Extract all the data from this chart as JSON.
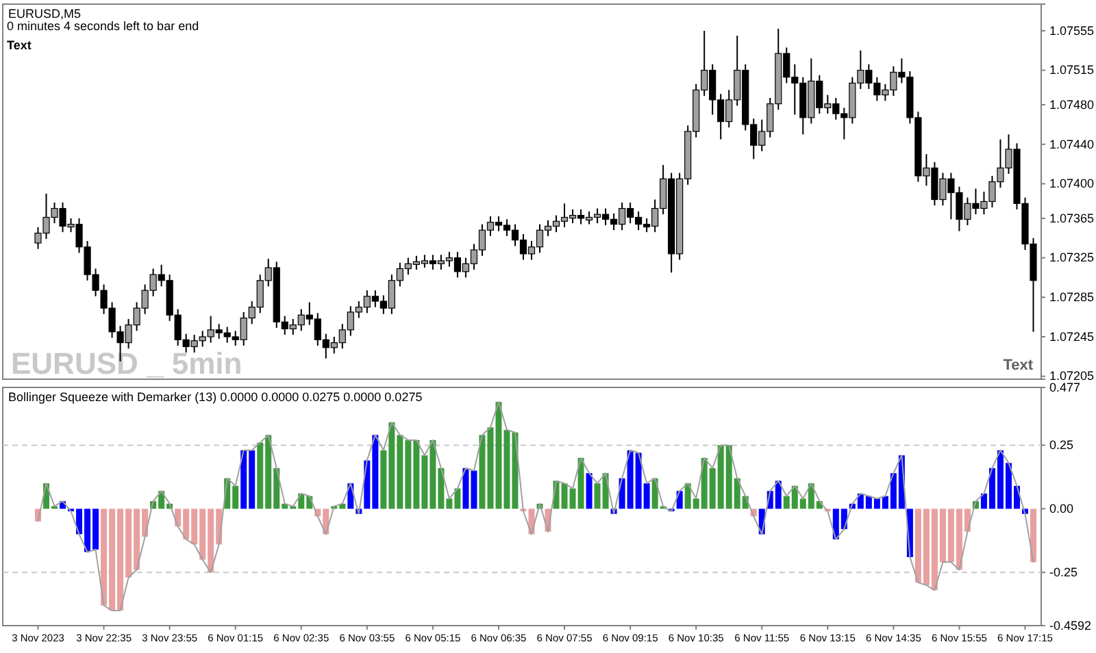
{
  "chart_data": [
    {
      "type": "candlestick",
      "title": "EURUSD,M5",
      "annotations": [
        "0 minutes 4 seconds left to bar end",
        "Text",
        "EURUSD _ 5min",
        "Text"
      ],
      "tick_labels": "y",
      "categories": [
        null,
        null,
        null,
        null,
        null,
        null,
        null,
        null,
        null,
        null,
        null,
        null,
        null,
        null,
        null,
        null,
        null,
        null,
        null,
        null,
        null,
        null,
        null,
        null,
        null,
        null,
        null,
        null,
        null,
        null,
        null,
        null,
        null,
        null,
        null,
        null,
        null,
        null,
        null,
        null,
        null,
        null,
        null,
        null,
        null,
        null,
        null,
        null,
        null,
        null,
        null,
        null,
        null,
        null,
        null,
        null,
        null,
        null,
        null,
        null,
        null,
        null,
        null,
        null,
        null,
        null,
        null,
        null,
        null,
        null,
        null,
        null,
        null,
        null,
        null,
        null,
        null,
        null,
        null,
        null,
        null,
        null,
        null,
        null,
        null,
        null,
        null,
        null,
        null,
        null,
        null,
        null,
        null,
        null,
        null,
        null,
        null,
        null,
        null,
        null,
        null,
        null,
        null,
        null,
        null,
        null,
        null,
        null,
        null,
        null,
        null,
        null,
        null,
        null,
        null,
        null,
        null,
        null,
        null,
        null,
        null,
        null
      ],
      "ylim": [
        1.07202,
        1.07582
      ],
      "yticks": [
        {
          "value": 1.07205,
          "label": "1.07205"
        },
        {
          "value": 1.07245,
          "label": "1.07245"
        },
        {
          "value": 1.07285,
          "label": "1.07285"
        },
        {
          "value": 1.07325,
          "label": "1.07325"
        },
        {
          "value": 1.07365,
          "label": "1.07365"
        },
        {
          "value": 1.074,
          "label": "1.07400"
        },
        {
          "value": 1.0744,
          "label": "1.07440"
        },
        {
          "value": 1.0748,
          "label": "1.07480"
        },
        {
          "value": 1.07515,
          "label": "1.07515"
        },
        {
          "value": 1.07555,
          "label": "1.07555"
        }
      ],
      "ohlc": [
        [
          1.0734,
          1.07356,
          1.07334,
          1.0735
        ],
        [
          1.0735,
          1.0739,
          1.07344,
          1.07366
        ],
        [
          1.07366,
          1.07381,
          1.0736,
          1.07375
        ],
        [
          1.07375,
          1.07381,
          1.07351,
          1.07357
        ],
        [
          1.07357,
          1.07365,
          1.07351,
          1.07359
        ],
        [
          1.07359,
          1.07365,
          1.0733,
          1.07336
        ],
        [
          1.07336,
          1.07342,
          1.07302,
          1.07308
        ],
        [
          1.07308,
          1.07314,
          1.07286,
          1.07292
        ],
        [
          1.07292,
          1.07298,
          1.07268,
          1.07274
        ],
        [
          1.07274,
          1.0728,
          1.07244,
          1.0725
        ],
        [
          1.0725,
          1.07256,
          1.0722,
          1.07239
        ],
        [
          1.07239,
          1.07263,
          1.07233,
          1.07257
        ],
        [
          1.07257,
          1.0728,
          1.07251,
          1.07274
        ],
        [
          1.07274,
          1.07298,
          1.07268,
          1.07292
        ],
        [
          1.07292,
          1.07314,
          1.07286,
          1.07308
        ],
        [
          1.07308,
          1.07318,
          1.07296,
          1.07302
        ],
        [
          1.07302,
          1.07308,
          1.07261,
          1.07267
        ],
        [
          1.07267,
          1.07273,
          1.07236,
          1.07242
        ],
        [
          1.07242,
          1.07248,
          1.07229,
          1.07235
        ],
        [
          1.07235,
          1.07247,
          1.07229,
          1.07241
        ],
        [
          1.07241,
          1.07251,
          1.07235,
          1.07245
        ],
        [
          1.07245,
          1.07266,
          1.07239,
          1.07252
        ],
        [
          1.07252,
          1.07258,
          1.07243,
          1.07249
        ],
        [
          1.07249,
          1.07255,
          1.07239,
          1.07245
        ],
        [
          1.07245,
          1.07251,
          1.07236,
          1.07242
        ],
        [
          1.07242,
          1.0727,
          1.07236,
          1.07264
        ],
        [
          1.07264,
          1.07281,
          1.07258,
          1.07275
        ],
        [
          1.07275,
          1.07308,
          1.07269,
          1.07302
        ],
        [
          1.07302,
          1.07324,
          1.07296,
          1.07315
        ],
        [
          1.07315,
          1.07321,
          1.07254,
          1.0726
        ],
        [
          1.0726,
          1.07266,
          1.07247,
          1.07253
        ],
        [
          1.07253,
          1.07263,
          1.07247,
          1.07257
        ],
        [
          1.07257,
          1.07273,
          1.07251,
          1.07267
        ],
        [
          1.07267,
          1.0728,
          1.07257,
          1.07263
        ],
        [
          1.07263,
          1.07269,
          1.07236,
          1.07242
        ],
        [
          1.07242,
          1.07248,
          1.07223,
          1.07234
        ],
        [
          1.07234,
          1.07245,
          1.07228,
          1.07239
        ],
        [
          1.07239,
          1.07258,
          1.07233,
          1.07252
        ],
        [
          1.07252,
          1.07276,
          1.07246,
          1.0727
        ],
        [
          1.0727,
          1.07281,
          1.07264,
          1.07275
        ],
        [
          1.07275,
          1.07292,
          1.07269,
          1.07286
        ],
        [
          1.07286,
          1.07292,
          1.07275,
          1.07281
        ],
        [
          1.07281,
          1.07287,
          1.07268,
          1.07274
        ],
        [
          1.07274,
          1.07308,
          1.07268,
          1.07302
        ],
        [
          1.07302,
          1.0732,
          1.07296,
          1.07314
        ],
        [
          1.07314,
          1.07325,
          1.07308,
          1.07319
        ],
        [
          1.07319,
          1.07327,
          1.07313,
          1.07321
        ],
        [
          1.07321,
          1.07328,
          1.07315,
          1.07322
        ],
        [
          1.07322,
          1.07328,
          1.07313,
          1.07319
        ],
        [
          1.07319,
          1.07328,
          1.07313,
          1.07322
        ],
        [
          1.07322,
          1.07331,
          1.07316,
          1.07325
        ],
        [
          1.07325,
          1.07331,
          1.07305,
          1.07311
        ],
        [
          1.07311,
          1.07325,
          1.07305,
          1.07319
        ],
        [
          1.07319,
          1.07339,
          1.07313,
          1.07333
        ],
        [
          1.07333,
          1.07359,
          1.07327,
          1.07353
        ],
        [
          1.07353,
          1.07367,
          1.07347,
          1.07361
        ],
        [
          1.07361,
          1.07367,
          1.07352,
          1.07358
        ],
        [
          1.07358,
          1.07364,
          1.07347,
          1.07353
        ],
        [
          1.07353,
          1.07359,
          1.07337,
          1.07343
        ],
        [
          1.07343,
          1.07349,
          1.07323,
          1.07329
        ],
        [
          1.07329,
          1.07342,
          1.07323,
          1.07336
        ],
        [
          1.07336,
          1.07359,
          1.0733,
          1.07353
        ],
        [
          1.07353,
          1.07363,
          1.07347,
          1.07357
        ],
        [
          1.07357,
          1.07368,
          1.07351,
          1.07362
        ],
        [
          1.07362,
          1.0738,
          1.07356,
          1.07366
        ],
        [
          1.07366,
          1.07374,
          1.0736,
          1.07368
        ],
        [
          1.07368,
          1.07374,
          1.07359,
          1.07365
        ],
        [
          1.07365,
          1.07372,
          1.07359,
          1.07366
        ],
        [
          1.07366,
          1.07375,
          1.0736,
          1.07369
        ],
        [
          1.07369,
          1.07375,
          1.07358,
          1.07364
        ],
        [
          1.07364,
          1.0737,
          1.07353,
          1.07359
        ],
        [
          1.07359,
          1.07381,
          1.07353,
          1.07375
        ],
        [
          1.07375,
          1.07381,
          1.0736,
          1.07366
        ],
        [
          1.07366,
          1.07372,
          1.07353,
          1.07359
        ],
        [
          1.07359,
          1.07365,
          1.07351,
          1.07357
        ],
        [
          1.07357,
          1.07384,
          1.07351,
          1.07375
        ],
        [
          1.07375,
          1.07419,
          1.07369,
          1.07405
        ],
        [
          1.07405,
          1.07411,
          1.0731,
          1.07329
        ],
        [
          1.07329,
          1.07411,
          1.07323,
          1.07405
        ],
        [
          1.07405,
          1.07459,
          1.07399,
          1.07453
        ],
        [
          1.07453,
          1.07501,
          1.07447,
          1.07495
        ],
        [
          1.07495,
          1.07555,
          1.07489,
          1.07515
        ],
        [
          1.07515,
          1.07521,
          1.0747,
          1.07485
        ],
        [
          1.07485,
          1.07491,
          1.07445,
          1.07463
        ],
        [
          1.07463,
          1.07495,
          1.07457,
          1.07485
        ],
        [
          1.07485,
          1.0755,
          1.07479,
          1.07515
        ],
        [
          1.07515,
          1.07521,
          1.07454,
          1.0746
        ],
        [
          1.0746,
          1.07466,
          1.07425,
          1.07439
        ],
        [
          1.07439,
          1.07465,
          1.07433,
          1.07453
        ],
        [
          1.07453,
          1.07487,
          1.07447,
          1.07481
        ],
        [
          1.07481,
          1.07557,
          1.07475,
          1.07532
        ],
        [
          1.07532,
          1.07538,
          1.07502,
          1.07508
        ],
        [
          1.07508,
          1.07521,
          1.0747,
          1.07502
        ],
        [
          1.07502,
          1.07508,
          1.0745,
          1.07467
        ],
        [
          1.07467,
          1.07527,
          1.07461,
          1.07504
        ],
        [
          1.07504,
          1.0751,
          1.07471,
          1.07477
        ],
        [
          1.07477,
          1.0749,
          1.07471,
          1.07481
        ],
        [
          1.07481,
          1.07487,
          1.07465,
          1.07471
        ],
        [
          1.07471,
          1.07477,
          1.07445,
          1.07467
        ],
        [
          1.07467,
          1.07508,
          1.07461,
          1.07502
        ],
        [
          1.07502,
          1.07535,
          1.07496,
          1.07515
        ],
        [
          1.07515,
          1.07521,
          1.07496,
          1.07502
        ],
        [
          1.07502,
          1.07508,
          1.07484,
          1.0749
        ],
        [
          1.0749,
          1.07501,
          1.07484,
          1.07495
        ],
        [
          1.07495,
          1.07519,
          1.07489,
          1.07513
        ],
        [
          1.07513,
          1.07527,
          1.07502,
          1.07508
        ],
        [
          1.07508,
          1.07514,
          1.07461,
          1.07467
        ],
        [
          1.07467,
          1.07473,
          1.07402,
          1.07408
        ],
        [
          1.07408,
          1.0743,
          1.07398,
          1.07416
        ],
        [
          1.07416,
          1.07422,
          1.07378,
          1.07384
        ],
        [
          1.07384,
          1.07411,
          1.07378,
          1.07405
        ],
        [
          1.07405,
          1.07411,
          1.07364,
          1.07391
        ],
        [
          1.07391,
          1.07397,
          1.07352,
          1.07364
        ],
        [
          1.07364,
          1.07386,
          1.07358,
          1.0738
        ],
        [
          1.0738,
          1.07395,
          1.07369,
          1.07375
        ],
        [
          1.07375,
          1.07392,
          1.07369,
          1.07382
        ],
        [
          1.07382,
          1.07408,
          1.07376,
          1.07402
        ],
        [
          1.07402,
          1.07445,
          1.07396,
          1.07416
        ],
        [
          1.07416,
          1.0745,
          1.0741,
          1.07435
        ],
        [
          1.07435,
          1.07441,
          1.07374,
          1.0738
        ],
        [
          1.0738,
          1.07386,
          1.07333,
          1.07339
        ],
        [
          1.07339,
          1.07345,
          1.0725,
          1.07302
        ]
      ]
    },
    {
      "type": "bar",
      "title": "Bollinger Squeeze with Demarker (13) 0.0000 0.0000 0.0275 0.0000 0.0275",
      "categories": [
        "3 Nov 2023",
        null,
        null,
        null,
        null,
        null,
        null,
        null,
        "3 Nov 22:35",
        null,
        null,
        null,
        null,
        null,
        null,
        null,
        "3 Nov 23:55",
        null,
        null,
        null,
        null,
        null,
        null,
        null,
        "6 Nov 01:15",
        null,
        null,
        null,
        null,
        null,
        null,
        null,
        "6 Nov 02:35",
        null,
        null,
        null,
        null,
        null,
        null,
        null,
        "6 Nov 03:55",
        null,
        null,
        null,
        null,
        null,
        null,
        null,
        "6 Nov 05:15",
        null,
        null,
        null,
        null,
        null,
        null,
        null,
        "6 Nov 06:35",
        null,
        null,
        null,
        null,
        null,
        null,
        null,
        "6 Nov 07:55",
        null,
        null,
        null,
        null,
        null,
        null,
        null,
        "6 Nov 09:15",
        null,
        null,
        null,
        null,
        null,
        null,
        null,
        "6 Nov 10:35",
        null,
        null,
        null,
        null,
        null,
        null,
        null,
        "6 Nov 11:55",
        null,
        null,
        null,
        null,
        null,
        null,
        null,
        "6 Nov 13:15",
        null,
        null,
        null,
        null,
        null,
        null,
        null,
        "6 Nov 14:35",
        null,
        null,
        null,
        null,
        null,
        null,
        null,
        "6 Nov 15:55",
        null,
        null,
        null,
        null,
        null,
        null,
        null,
        "6 Nov 17:15",
        null
      ],
      "ylim": [
        -0.4592,
        0.477
      ],
      "yticks": [
        -0.4592,
        -0.25,
        {
          "value": 0,
          "label": "0.00"
        },
        0.25,
        0.477
      ],
      "ref_lines": [
        {
          "axis": "y",
          "value": 0.25,
          "label": null,
          "color": "#c8c8c8",
          "line_style": "dashed"
        },
        {
          "axis": "y",
          "value": -0.25,
          "label": null,
          "color": "#c8c8c8",
          "line_style": "dashed"
        }
      ],
      "series": [
        {
          "type": "bar",
          "values": [
            -0.05,
            0.1,
            0.01,
            0.03,
            -0.01,
            -0.1,
            -0.17,
            -0.16,
            -0.38,
            -0.4,
            -0.4,
            -0.27,
            -0.24,
            -0.11,
            0.03,
            0.07,
            0.02,
            -0.07,
            -0.12,
            -0.14,
            -0.2,
            -0.25,
            -0.14,
            0.12,
            0.09,
            0.23,
            0.23,
            0.26,
            0.29,
            0.16,
            0.02,
            0.01,
            0.06,
            0.05,
            -0.03,
            -0.1,
            0.01,
            0.02,
            0.1,
            -0.02,
            0.19,
            0.29,
            0.23,
            0.34,
            0.29,
            0.27,
            0.27,
            0.21,
            0.27,
            0.16,
            0.04,
            0.08,
            0.16,
            0.15,
            0.29,
            0.32,
            0.42,
            0.31,
            0.3,
            -0.01,
            -0.1,
            0.02,
            -0.09,
            0.11,
            0.1,
            0.08,
            0.2,
            0.14,
            0.1,
            0.14,
            -0.02,
            0.12,
            0.23,
            0.22,
            0.1,
            0.12,
            0.01,
            -0.01,
            0.07,
            0.1,
            0.04,
            0.2,
            0.16,
            0.25,
            0.25,
            0.12,
            0.05,
            -0.03,
            -0.1,
            0.07,
            0.11,
            0.05,
            0.09,
            0.04,
            0.1,
            0.03,
            -0.01,
            -0.12,
            -0.08,
            0.02,
            0.06,
            0.05,
            0.04,
            0.05,
            0.14,
            0.21,
            -0.19,
            -0.29,
            -0.3,
            -0.32,
            -0.21,
            -0.21,
            -0.24,
            -0.09,
            0.03,
            0.06,
            0.16,
            0.23,
            0.18,
            0.09,
            -0.02,
            -0.21
          ],
          "colors": [
            "#e8a0a0",
            "#3c9a3c",
            "#3c9a3c",
            "#0000ff",
            "#0000ff",
            "#0000ff",
            "#0000ff",
            "#0000ff",
            "#e8a0a0",
            "#e8a0a0",
            "#e8a0a0",
            "#e8a0a0",
            "#e8a0a0",
            "#e8a0a0",
            "#3c9a3c",
            "#3c9a3c",
            "#3c9a3c",
            "#e8a0a0",
            "#e8a0a0",
            "#e8a0a0",
            "#e8a0a0",
            "#e8a0a0",
            "#e8a0a0",
            "#3c9a3c",
            "#3c9a3c",
            "#0000ff",
            "#0000ff",
            "#3c9a3c",
            "#3c9a3c",
            "#3c9a3c",
            "#3c9a3c",
            "#3c9a3c",
            "#3c9a3c",
            "#3c9a3c",
            "#e8a0a0",
            "#e8a0a0",
            "#3c9a3c",
            "#3c9a3c",
            "#0000ff",
            "#0000ff",
            "#0000ff",
            "#0000ff",
            "#3c9a3c",
            "#3c9a3c",
            "#3c9a3c",
            "#3c9a3c",
            "#3c9a3c",
            "#3c9a3c",
            "#3c9a3c",
            "#3c9a3c",
            "#3c9a3c",
            "#3c9a3c",
            "#0000ff",
            "#0000ff",
            "#3c9a3c",
            "#3c9a3c",
            "#3c9a3c",
            "#3c9a3c",
            "#3c9a3c",
            "#e8a0a0",
            "#e8a0a0",
            "#3c9a3c",
            "#e8a0a0",
            "#3c9a3c",
            "#3c9a3c",
            "#3c9a3c",
            "#3c9a3c",
            "#0000ff",
            "#3c9a3c",
            "#3c9a3c",
            "#0000ff",
            "#0000ff",
            "#0000ff",
            "#0000ff",
            "#0000ff",
            "#3c9a3c",
            "#3c9a3c",
            "#0000ff",
            "#0000ff",
            "#3c9a3c",
            "#3c9a3c",
            "#3c9a3c",
            "#3c9a3c",
            "#3c9a3c",
            "#3c9a3c",
            "#3c9a3c",
            "#3c9a3c",
            "#e8a0a0",
            "#0000ff",
            "#0000ff",
            "#0000ff",
            "#3c9a3c",
            "#3c9a3c",
            "#3c9a3c",
            "#3c9a3c",
            "#3c9a3c",
            "#e8a0a0",
            "#0000ff",
            "#0000ff",
            "#0000ff",
            "#0000ff",
            "#0000ff",
            "#0000ff",
            "#0000ff",
            "#0000ff",
            "#0000ff",
            "#0000ff",
            "#e8a0a0",
            "#e8a0a0",
            "#e8a0a0",
            "#e8a0a0",
            "#e8a0a0",
            "#e8a0a0",
            "#e8a0a0",
            "#3c9a3c",
            "#0000ff",
            "#0000ff",
            "#0000ff",
            "#0000ff",
            "#0000ff",
            "#0000ff",
            "#e8a0a0"
          ]
        },
        {
          "type": "line",
          "color": "#a0a0a0",
          "values": [
            -0.05,
            0.1,
            0.01,
            0.03,
            -0.01,
            -0.1,
            -0.17,
            -0.16,
            -0.38,
            -0.4,
            -0.4,
            -0.27,
            -0.24,
            -0.11,
            0.03,
            0.07,
            0.02,
            -0.07,
            -0.12,
            -0.14,
            -0.2,
            -0.25,
            -0.14,
            0.12,
            0.09,
            0.23,
            0.23,
            0.26,
            0.29,
            0.16,
            0.02,
            0.01,
            0.06,
            0.05,
            -0.03,
            -0.1,
            0.01,
            0.02,
            0.1,
            -0.02,
            0.19,
            0.29,
            0.23,
            0.34,
            0.29,
            0.27,
            0.27,
            0.21,
            0.27,
            0.16,
            0.04,
            0.08,
            0.16,
            0.15,
            0.29,
            0.32,
            0.42,
            0.31,
            0.3,
            -0.01,
            -0.1,
            0.02,
            -0.09,
            0.11,
            0.1,
            0.08,
            0.2,
            0.14,
            0.1,
            0.14,
            -0.02,
            0.12,
            0.23,
            0.22,
            0.1,
            0.12,
            0.01,
            -0.01,
            0.07,
            0.1,
            0.04,
            0.2,
            0.16,
            0.25,
            0.25,
            0.12,
            0.05,
            -0.03,
            -0.1,
            0.07,
            0.11,
            0.05,
            0.09,
            0.04,
            0.1,
            0.03,
            -0.01,
            -0.12,
            -0.08,
            0.02,
            0.06,
            0.05,
            0.04,
            0.05,
            0.14,
            0.21,
            -0.19,
            -0.29,
            -0.3,
            -0.32,
            -0.21,
            -0.21,
            -0.24,
            -0.09,
            0.03,
            0.06,
            0.16,
            0.23,
            0.18,
            0.09,
            -0.02,
            -0.21
          ]
        }
      ]
    }
  ]
}
